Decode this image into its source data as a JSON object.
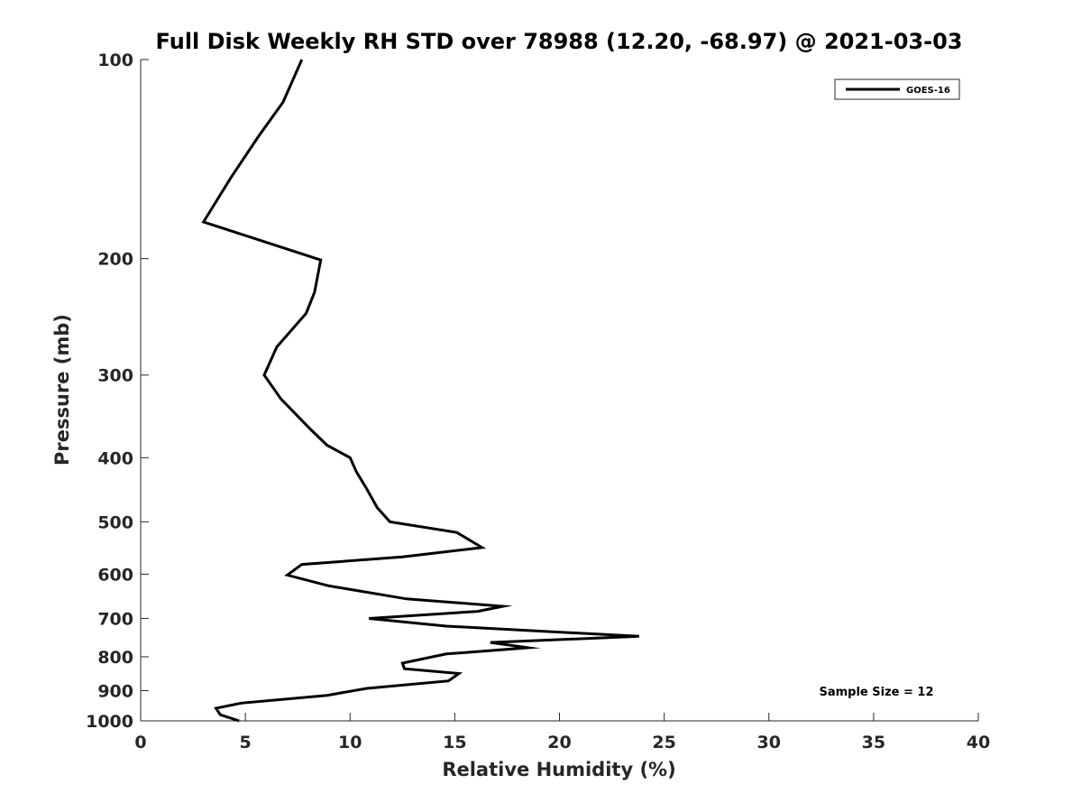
{
  "chart_data": {
    "type": "line",
    "title": "Full Disk Weekly RH STD over 78988 (12.20, -68.97) @ 2021-03-03",
    "xlabel": "Relative Humidity (%)",
    "ylabel": "Pressure (mb)",
    "xlim": [
      0,
      40
    ],
    "ylim": [
      100,
      1000
    ],
    "y_scale": "log",
    "y_reversed": true,
    "x_ticks": [
      0,
      5,
      10,
      15,
      20,
      25,
      30,
      35,
      40
    ],
    "y_ticks": [
      100,
      200,
      300,
      400,
      500,
      600,
      700,
      800,
      900,
      1000
    ],
    "grid": false,
    "legend_position": "top-right",
    "annotation": "Sample Size = 12",
    "series": [
      {
        "name": "GOES-16",
        "color": "#000000",
        "x": [
          7.7,
          6.8,
          5.6,
          4.3,
          3.0,
          8.6,
          8.3,
          7.9,
          6.5,
          5.9,
          6.7,
          8.1,
          8.9,
          10.0,
          10.3,
          10.8,
          11.3,
          11.9,
          15.1,
          16.3,
          12.5,
          7.7,
          7.0,
          9.0,
          12.7,
          17.3,
          16.1,
          10.9,
          14.6,
          23.8,
          16.7,
          18.5,
          14.6,
          12.5,
          12.6,
          15.2,
          14.7,
          10.8,
          8.9,
          4.8,
          3.6,
          3.8,
          4.7
        ],
        "y": [
          100,
          116,
          131,
          151,
          176,
          201,
          225,
          242,
          272,
          300,
          326,
          362,
          383,
          400,
          420,
          446,
          476,
          500,
          519,
          547,
          565,
          580,
          602,
          625,
          654,
          671,
          683,
          700,
          719,
          745,
          761,
          775,
          792,
          818,
          834,
          848,
          870,
          893,
          915,
          940,
          957,
          979,
          1000
        ]
      }
    ]
  }
}
